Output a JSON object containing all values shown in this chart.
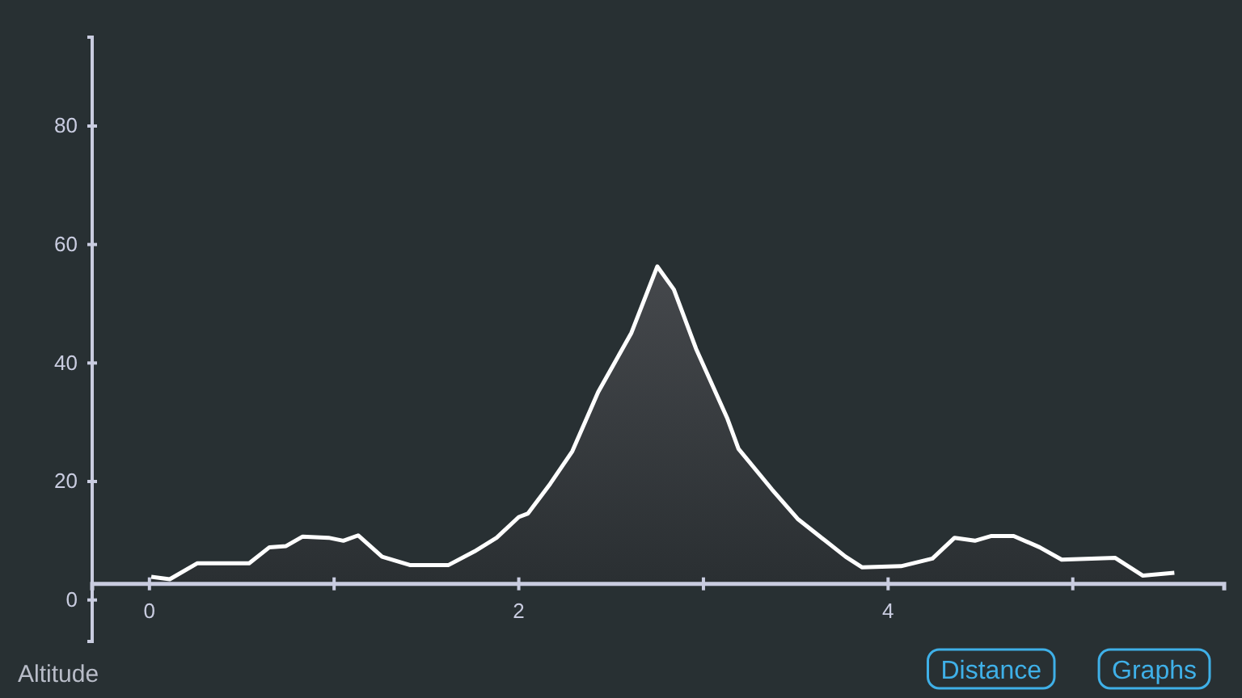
{
  "chart_data": {
    "type": "area",
    "x": [
      0.01,
      0.11,
      0.26,
      0.54,
      0.65,
      0.74,
      0.83,
      0.97,
      1.05,
      1.13,
      1.26,
      1.41,
      1.62,
      1.76,
      1.88,
      2.0,
      2.05,
      2.17,
      2.29,
      2.43,
      2.61,
      2.75,
      2.84,
      2.96,
      3.13,
      3.19,
      3.37,
      3.51,
      3.66,
      3.77,
      3.86,
      4.07,
      4.24,
      4.36,
      4.47,
      4.56,
      4.68,
      4.82,
      4.94,
      5.23,
      5.38,
      5.55
    ],
    "series": [
      {
        "color": "#ffffff",
        "values": [
          3.9,
          3.5,
          6.2,
          6.2,
          8.9,
          9.1,
          10.7,
          10.5,
          10.0,
          10.9,
          7.3,
          5.9,
          5.9,
          8.2,
          10.5,
          14.0,
          14.6,
          19.6,
          25.1,
          35.1,
          45.1,
          56.3,
          52.4,
          42.4,
          30.6,
          25.5,
          18.7,
          13.7,
          10.0,
          7.3,
          5.5,
          5.7,
          7.0,
          10.5,
          10.0,
          10.8,
          10.8,
          8.9,
          6.8,
          7.1,
          4.1,
          4.6
        ]
      }
    ],
    "xlim": [
      -0.31,
      5.82
    ],
    "xticks": [
      0,
      {
        "value": 1,
        "label": null
      },
      2,
      {
        "value": 3,
        "label": null
      },
      4,
      {
        "value": 5,
        "label": null
      }
    ],
    "ylim": [
      -7,
      95
    ],
    "yticks": [
      0,
      20,
      40,
      60,
      80
    ],
    "annotations": [
      "Altitude",
      "Distance",
      "Graphs"
    ]
  }
}
